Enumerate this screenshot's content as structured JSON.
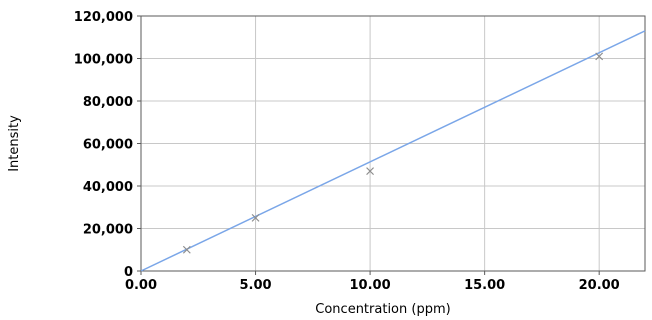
{
  "chart_data": {
    "type": "scatter",
    "xlabel": "Concentration (ppm)",
    "ylabel": "Intensity",
    "xlim": [
      0,
      22
    ],
    "ylim": [
      0,
      120000
    ],
    "x_ticks": [
      0,
      5,
      10,
      15,
      20
    ],
    "x_tick_labels": [
      "0.00",
      "5.00",
      "10.00",
      "15.00",
      "20.00"
    ],
    "y_ticks": [
      0,
      20000,
      40000,
      60000,
      80000,
      100000,
      120000
    ],
    "y_tick_labels": [
      "0",
      "20,000",
      "40,000",
      "60,000",
      "80,000",
      "100,000",
      "120,000"
    ],
    "grid": true,
    "points": [
      {
        "x": 2,
        "y": 10000
      },
      {
        "x": 5,
        "y": 25000
      },
      {
        "x": 10,
        "y": 47000
      },
      {
        "x": 20,
        "y": 101000
      }
    ],
    "fit_line": {
      "x": [
        0,
        22
      ],
      "y": [
        0,
        113000
      ]
    },
    "colors": {
      "fit_line": "#7aa6e8",
      "grid": "#c8c8c8",
      "marker": "#8c8c8c",
      "frame": "#5a5a5a"
    }
  }
}
